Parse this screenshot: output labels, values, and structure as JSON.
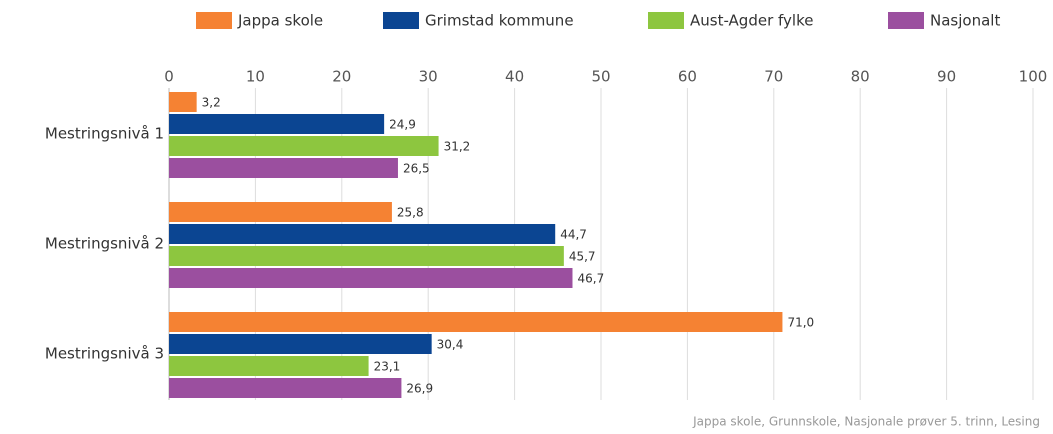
{
  "chart_data": {
    "type": "hbar",
    "categories": [
      "Mestringsnivå 1",
      "Mestringsnivå 2",
      "Mestringsnivå 3"
    ],
    "series": [
      {
        "name": "Jappa skole",
        "color": "#f58233",
        "values": [
          3.2,
          25.8,
          71.0
        ],
        "value_labels": [
          "3,2",
          "25,8",
          "71,0"
        ]
      },
      {
        "name": "Grimstad kommune",
        "color": "#0b4592",
        "values": [
          24.9,
          44.7,
          30.4
        ],
        "value_labels": [
          "24,9",
          "44,7",
          "30,4"
        ]
      },
      {
        "name": "Aust-Agder fylke",
        "color": "#8dc63f",
        "values": [
          31.2,
          45.7,
          23.1
        ],
        "value_labels": [
          "31,2",
          "45,7",
          "23,1"
        ]
      },
      {
        "name": "Nasjonalt",
        "color": "#9b4f9f",
        "values": [
          26.5,
          46.7,
          26.9
        ],
        "value_labels": [
          "26,5",
          "46,7",
          "26,9"
        ]
      }
    ],
    "xlim": [
      0,
      100
    ],
    "xticks": [
      0,
      10,
      20,
      30,
      40,
      50,
      60,
      70,
      80,
      90,
      100
    ],
    "grid": true,
    "legend": "top",
    "source": "Jappa skole, Grunnskole, Nasjonale prøver 5. trinn, Lesing"
  }
}
